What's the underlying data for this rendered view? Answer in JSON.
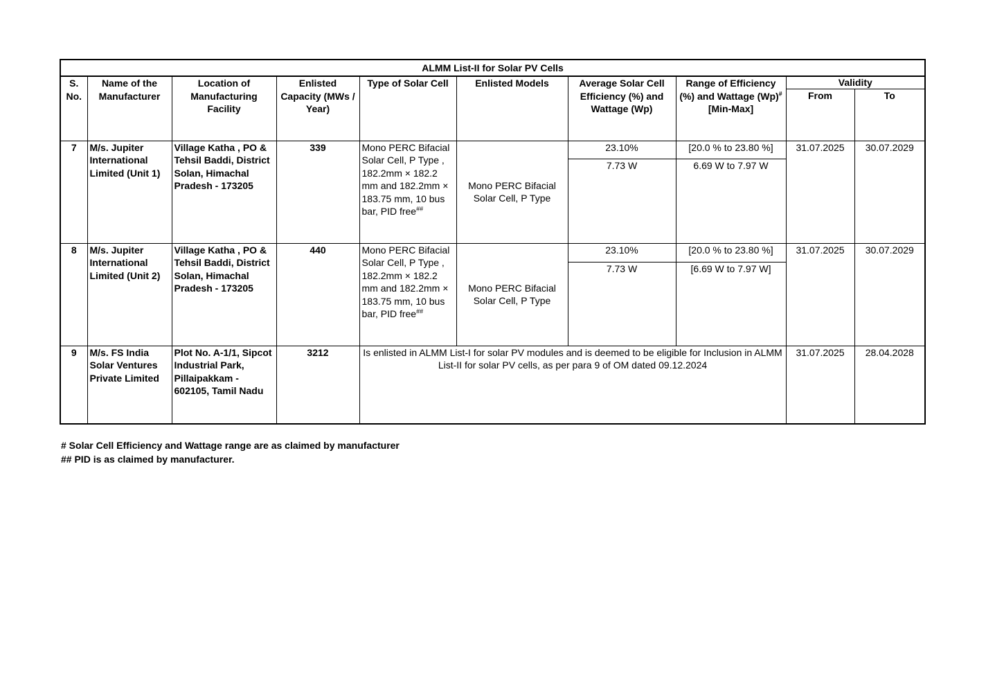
{
  "title": "ALMM List-II for Solar PV Cells",
  "headers": {
    "sno": "S. No.",
    "name": "Name of the Manufacturer",
    "location": "Location of Manufacturing Facility",
    "capacity": "Enlisted Capacity (MWs / Year)",
    "type": "Type of Solar Cell",
    "models": "Enlisted Models",
    "average": "Average Solar Cell Efficiency (%) and Wattage (Wp)",
    "range_a": "Range of Efficiency (%) and Wattage (Wp)",
    "range_sup": "#",
    "range_b": " [Min-Max]",
    "validity": "Validity",
    "from": "From",
    "to": "To"
  },
  "rows": [
    {
      "sno": "7",
      "name": "M/s. Jupiter International Limited (Unit 1)",
      "location": "Village Katha , PO & Tehsil Baddi, District Solan, Himachal Pradesh - 173205",
      "capacity": "339",
      "type": "Mono PERC Bifacial Solar Cell, P Type , 182.2mm × 182.2 mm and 182.2mm × 183.75 mm, 10 bus bar, PID free",
      "type_sup": "##",
      "models": "Mono PERC Bifacial Solar Cell, P Type",
      "avg_eff": "23.10%",
      "avg_watt": "7.73 W",
      "range_eff": "[20.0 % to 23.80 %]",
      "range_watt": "6.69 W to 7.97 W",
      "from": "31.07.2025",
      "to": "30.07.2029"
    },
    {
      "sno": "8",
      "name": "M/s. Jupiter International Limited (Unit  2)",
      "location": "Village Katha , PO & Tehsil Baddi, District Solan, Himachal Pradesh - 173205",
      "capacity": "440",
      "type": "Mono PERC Bifacial Solar Cell, P Type , 182.2mm × 182.2 mm and 182.2mm × 183.75 mm, 10 bus bar, PID free",
      "type_sup": "##",
      "models": "Mono PERC Bifacial Solar Cell, P Type",
      "avg_eff": "23.10%",
      "avg_watt": "7.73 W",
      "range_eff": "[20.0 % to 23.80 %]",
      "range_watt": "[6.69 W to 7.97 W]",
      "from": "31.07.2025",
      "to": "30.07.2029"
    },
    {
      "sno": "9",
      "name": "M/s. FS India Solar Ventures Private Limited",
      "location": "Plot No. A-1/1, Sipcot Industrial Park, Pillaipakkam - 602105, Tamil Nadu",
      "capacity": "3212",
      "note": "Is enlisted in ALMM List-I for  solar PV modules and is deemed to be eligible for Inclusion in ALMM List-II for solar PV cells, as per para 9 of OM dated 09.12.2024",
      "from": "31.07.2025",
      "to": "28.04.2028"
    }
  ],
  "footnotes": [
    "# Solar Cell Efficiency and Wattage range are as claimed by manufacturer",
    "## PID is as claimed by manufacturer."
  ]
}
